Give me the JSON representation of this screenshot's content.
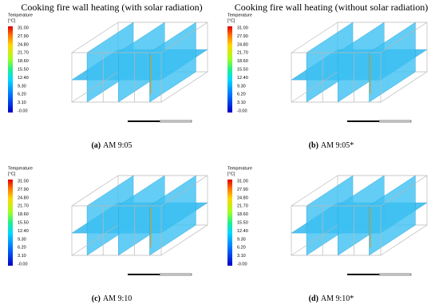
{
  "headings": [
    "Cooking fire wall heating (with solar radiation)",
    "Cooking fire wall heating (without solar radiation)"
  ],
  "panels": [
    {
      "label": "(a)",
      "caption": "AM 9:05"
    },
    {
      "label": "(b)",
      "caption": "AM 9:05*"
    },
    {
      "label": "(c)",
      "caption": "AM 9:10"
    },
    {
      "label": "(d)",
      "caption": "AM 9:10*"
    }
  ],
  "legend": {
    "title": "Temperature",
    "unit": "[°C]",
    "ticks": [
      "31.00",
      "27.90",
      "24.80",
      "21.70",
      "18.60",
      "15.50",
      "12.40",
      "9.30",
      "6.20",
      "3.10",
      "-0.00"
    ]
  }
}
